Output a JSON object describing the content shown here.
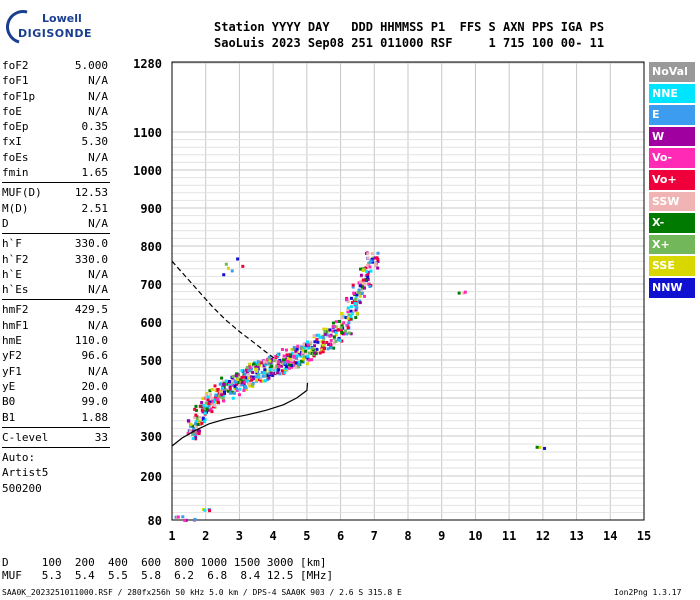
{
  "brand": {
    "line1": "Lowell",
    "line2": "DIGISONDE"
  },
  "header": {
    "line1": "Station YYYY DAY   DDD HHMMSS P1  FFS S AXN PPS IGA PS",
    "line2": "SaoLuis 2023 Sep08 251 011000 RSF     1 715 100 00- 11"
  },
  "params_a": [
    {
      "k": "foF2",
      "v": "5.000"
    },
    {
      "k": "foF1",
      "v": "N/A"
    },
    {
      "k": "foF1p",
      "v": "N/A"
    },
    {
      "k": "foE",
      "v": "N/A"
    },
    {
      "k": "foEp",
      "v": "0.35"
    },
    {
      "k": "fxI",
      "v": "5.30"
    },
    {
      "k": "foEs",
      "v": "N/A"
    },
    {
      "k": "fmin",
      "v": "1.65"
    }
  ],
  "params_b": [
    {
      "k": "MUF(D)",
      "v": "12.53"
    },
    {
      "k": "M(D)",
      "v": "2.51"
    },
    {
      "k": "D",
      "v": "N/A"
    }
  ],
  "params_c": [
    {
      "k": "h`F",
      "v": "330.0"
    },
    {
      "k": "h`F2",
      "v": "330.0"
    },
    {
      "k": "h`E",
      "v": "N/A"
    },
    {
      "k": "h`Es",
      "v": "N/A"
    }
  ],
  "params_d": [
    {
      "k": "hmF2",
      "v": "429.5"
    },
    {
      "k": "hmF1",
      "v": "N/A"
    },
    {
      "k": "hmE",
      "v": "110.0"
    },
    {
      "k": "yF2",
      "v": "96.6"
    },
    {
      "k": "yF1",
      "v": "N/A"
    },
    {
      "k": "yE",
      "v": "20.0"
    },
    {
      "k": "B0",
      "v": "99.0"
    },
    {
      "k": "B1",
      "v": "1.88"
    }
  ],
  "clevel": {
    "k": "C-level",
    "v": "33"
  },
  "auto": [
    "Auto:",
    "Artist5",
    "500200"
  ],
  "legend": [
    {
      "label": "NoVal",
      "color": "#999999"
    },
    {
      "label": "NNE",
      "color": "#00e5ff"
    },
    {
      "label": "E",
      "color": "#3b9cf0"
    },
    {
      "label": "W",
      "color": "#a0009f"
    },
    {
      "label": "Vo-",
      "color": "#ff2ab5"
    },
    {
      "label": "Vo+",
      "color": "#f0003a"
    },
    {
      "label": "SSW",
      "color": "#f0b4b4"
    },
    {
      "label": "X-",
      "color": "#007a00"
    },
    {
      "label": "X+",
      "color": "#72b85a"
    },
    {
      "label": "SSE",
      "color": "#d8d800"
    },
    {
      "label": "NNW",
      "color": "#1010d0"
    }
  ],
  "bottom": {
    "line1": "D     100  200  400  600  800 1000 1500 3000 [km]",
    "line2": "MUF   5.3  5.4  5.5  5.8  6.2  6.8  8.4 12.5 [MHz]"
  },
  "footer": "SAA0K_2023251011000.RSF / 280fx256h 50 kHz 5.0 km / DPS-4 SAA0K 903 / 2.6 S 315.8 E",
  "version": "Ion2Png 1.3.17",
  "chart_data": {
    "type": "scatter",
    "title": "",
    "xlabel": "",
    "ylabel": "",
    "xlim": [
      1,
      15
    ],
    "ylim": [
      80,
      1280
    ],
    "xticks": [
      1,
      2,
      3,
      4,
      5,
      6,
      7,
      8,
      9,
      10,
      11,
      12,
      13,
      14,
      15
    ],
    "yticks": [
      80,
      200,
      300,
      400,
      500,
      600,
      700,
      800,
      900,
      1000,
      1100,
      1280
    ],
    "grid": true,
    "series": [
      {
        "kind": "trace",
        "points": [
          [
            1.0,
            275
          ],
          [
            1.3,
            295
          ],
          [
            1.7,
            315
          ],
          [
            2.1,
            332
          ],
          [
            2.6,
            345
          ],
          [
            3.2,
            355
          ],
          [
            3.8,
            368
          ],
          [
            4.3,
            382
          ],
          [
            4.7,
            400
          ],
          [
            5.0,
            420
          ],
          [
            5.02,
            440
          ]
        ]
      },
      {
        "kind": "mufline",
        "points": [
          [
            1.0,
            760
          ],
          [
            1.4,
            720
          ],
          [
            1.8,
            680
          ],
          [
            2.2,
            640
          ],
          [
            2.6,
            605
          ],
          [
            3.0,
            575
          ],
          [
            3.4,
            548
          ],
          [
            3.8,
            520
          ],
          [
            4.1,
            500
          ]
        ]
      },
      {
        "kind": "echo",
        "points": [
          [
            1.6,
            320
          ],
          [
            1.8,
            360
          ],
          [
            2.0,
            390
          ],
          [
            2.2,
            400
          ],
          [
            2.4,
            420
          ],
          [
            2.6,
            430
          ],
          [
            2.8,
            440
          ],
          [
            3.0,
            450
          ],
          [
            3.2,
            460
          ],
          [
            3.4,
            470
          ],
          [
            3.6,
            475
          ],
          [
            3.8,
            480
          ],
          [
            4.0,
            490
          ],
          [
            4.2,
            495
          ],
          [
            4.4,
            505
          ],
          [
            4.6,
            510
          ],
          [
            4.8,
            520
          ],
          [
            5.0,
            530
          ],
          [
            5.3,
            545
          ],
          [
            5.6,
            560
          ],
          [
            5.9,
            580
          ],
          [
            6.1,
            600
          ],
          [
            6.3,
            640
          ],
          [
            6.5,
            680
          ],
          [
            6.7,
            720
          ],
          [
            6.9,
            760
          ],
          [
            2.6,
            740
          ],
          [
            2.9,
            750
          ],
          [
            1.2,
            90
          ],
          [
            1.5,
            85
          ],
          [
            2.0,
            110
          ],
          [
            9.5,
            680
          ],
          [
            11.9,
            275
          ]
        ]
      }
    ]
  }
}
